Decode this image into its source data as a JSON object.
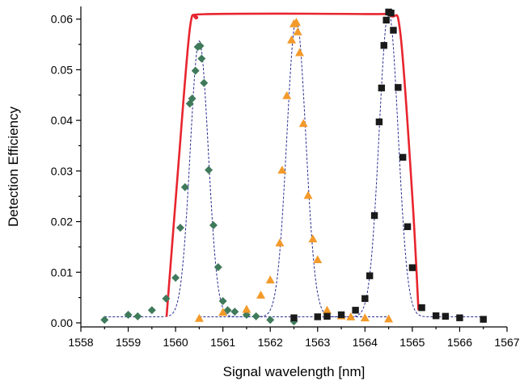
{
  "chart_data": {
    "type": "scatter",
    "title": "",
    "xlabel": "Signal wavelength [nm]",
    "ylabel": "Detection Efficiency",
    "xlim": [
      1558,
      1567
    ],
    "ylim": [
      -0.0008,
      0.0625
    ],
    "x_ticks": [
      1558,
      1559,
      1560,
      1561,
      1562,
      1563,
      1564,
      1565,
      1566,
      1567
    ],
    "x_tick_labels": [
      "1558",
      "1559",
      "1560",
      "1561",
      "1562",
      "1563",
      "1564",
      "1565",
      "1566",
      "1567"
    ],
    "y_ticks": [
      0.0,
      0.01,
      0.02,
      0.03,
      0.04,
      0.05,
      0.06
    ],
    "y_tick_labels": [
      "0.00",
      "0.01",
      "0.02",
      "0.03",
      "0.04",
      "0.05",
      "0.06"
    ],
    "grid": false,
    "legend": "none",
    "series": [
      {
        "marker": "diamond",
        "color": "#3f7a5a",
        "points": [
          [
            1558.5,
            0.0006
          ],
          [
            1559.0,
            0.0016
          ],
          [
            1559.2,
            0.0013
          ],
          [
            1559.5,
            0.0025
          ],
          [
            1559.8,
            0.0048
          ],
          [
            1560.0,
            0.0089
          ],
          [
            1560.1,
            0.0188
          ],
          [
            1560.2,
            0.0268
          ],
          [
            1560.3,
            0.0433
          ],
          [
            1560.35,
            0.0443
          ],
          [
            1560.42,
            0.0498
          ],
          [
            1560.47,
            0.0545
          ],
          [
            1560.52,
            0.0547
          ],
          [
            1560.55,
            0.0522
          ],
          [
            1560.6,
            0.0474
          ],
          [
            1560.7,
            0.0302
          ],
          [
            1560.8,
            0.0193
          ],
          [
            1560.9,
            0.011
          ],
          [
            1561.0,
            0.0043
          ],
          [
            1561.1,
            0.0025
          ],
          [
            1561.25,
            0.0022
          ],
          [
            1561.5,
            0.0016
          ],
          [
            1561.7,
            0.0013
          ],
          [
            1562.0,
            0.0006
          ],
          [
            1562.5,
            0.0003
          ]
        ]
      },
      {
        "marker": "triangle",
        "color": "#f39a2a",
        "points": [
          [
            1560.5,
            0.0009
          ],
          [
            1561.0,
            0.0021
          ],
          [
            1561.5,
            0.0027
          ],
          [
            1561.8,
            0.0055
          ],
          [
            1562.0,
            0.0085
          ],
          [
            1562.2,
            0.0158
          ],
          [
            1562.25,
            0.0302
          ],
          [
            1562.35,
            0.0449
          ],
          [
            1562.45,
            0.0559
          ],
          [
            1562.5,
            0.0591
          ],
          [
            1562.55,
            0.0594
          ],
          [
            1562.58,
            0.0575
          ],
          [
            1562.62,
            0.0534
          ],
          [
            1562.7,
            0.0394
          ],
          [
            1562.8,
            0.0252
          ],
          [
            1562.9,
            0.0166
          ],
          [
            1563.0,
            0.0125
          ],
          [
            1563.2,
            0.0025
          ],
          [
            1563.5,
            0.0014
          ],
          [
            1563.7,
            0.0012
          ],
          [
            1564.0,
            0.001
          ],
          [
            1564.5,
            0.0008
          ]
        ]
      },
      {
        "marker": "square",
        "color": "#1a1a1a",
        "points": [
          [
            1562.5,
            0.001
          ],
          [
            1563.0,
            0.0012
          ],
          [
            1563.2,
            0.0013
          ],
          [
            1563.5,
            0.0016
          ],
          [
            1563.8,
            0.0025
          ],
          [
            1564.0,
            0.0048
          ],
          [
            1564.1,
            0.0093
          ],
          [
            1564.2,
            0.0212
          ],
          [
            1564.3,
            0.0397
          ],
          [
            1564.35,
            0.0464
          ],
          [
            1564.4,
            0.0548
          ],
          [
            1564.45,
            0.0598
          ],
          [
            1564.5,
            0.0614
          ],
          [
            1564.55,
            0.0612
          ],
          [
            1564.6,
            0.0578
          ],
          [
            1564.7,
            0.0465
          ],
          [
            1564.8,
            0.0327
          ],
          [
            1564.9,
            0.019
          ],
          [
            1565.0,
            0.0109
          ],
          [
            1565.2,
            0.003
          ],
          [
            1565.5,
            0.0014
          ],
          [
            1565.7,
            0.0013
          ],
          [
            1566.0,
            0.001
          ],
          [
            1566.5,
            0.0007
          ]
        ]
      }
    ],
    "fits": [
      {
        "center": 1560.5,
        "amplitude": 0.0545,
        "sigma": 0.19,
        "baseline": 0.0012,
        "xmin": 1558.5,
        "xmax": 1562.5
      },
      {
        "center": 1562.55,
        "amplitude": 0.0587,
        "sigma": 0.2,
        "baseline": 0.0012,
        "xmin": 1560.5,
        "xmax": 1564.5
      },
      {
        "center": 1564.5,
        "amplitude": 0.0603,
        "sigma": 0.2,
        "baseline": 0.0012,
        "xmin": 1562.5,
        "xmax": 1566.5
      }
    ],
    "envelope": {
      "color": "#e8252e",
      "points": [
        [
          1559.81,
          0.0012
        ],
        [
          1560.05,
          0.03
        ],
        [
          1560.3,
          0.058
        ],
        [
          1560.45,
          0.0602
        ],
        [
          1560.7,
          0.061
        ],
        [
          1564.0,
          0.061
        ],
        [
          1564.55,
          0.0606
        ],
        [
          1564.75,
          0.057
        ],
        [
          1565.0,
          0.025
        ],
        [
          1565.13,
          0.0025
        ]
      ]
    }
  }
}
